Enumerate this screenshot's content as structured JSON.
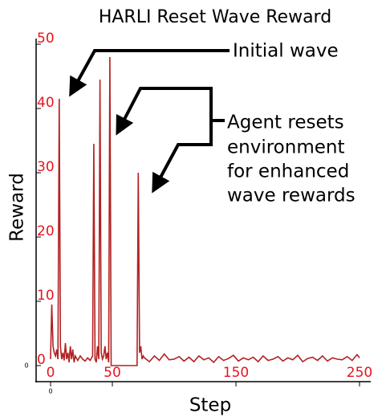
{
  "chart_data": {
    "type": "line",
    "title": "HARLI Reset Wave Reward",
    "xlabel": "Step",
    "ylabel": "Reward",
    "xlim": [
      0,
      250
    ],
    "ylim": [
      0,
      50
    ],
    "xticks": [
      0,
      50,
      150,
      250
    ],
    "yticks": [
      0,
      10,
      20,
      30,
      40,
      50
    ],
    "minor_labels": [
      "0",
      "0"
    ],
    "annotations": [
      "Initial wave",
      "Agent resets",
      "environment",
      "for enhanced",
      "wave rewards"
    ],
    "series": [
      {
        "name": "Reward",
        "color": "#b22222",
        "x": [
          0,
          1,
          2,
          3,
          4,
          5,
          6,
          7,
          8,
          9,
          10,
          11,
          12,
          13,
          14,
          15,
          16,
          17,
          18,
          19,
          20,
          22,
          24,
          26,
          28,
          30,
          32,
          34,
          35,
          36,
          37,
          38,
          39,
          40,
          41,
          42,
          43,
          44,
          45,
          46,
          47,
          48,
          49,
          50,
          70,
          71,
          72,
          73,
          74,
          75,
          76,
          80,
          84,
          88,
          92,
          96,
          100,
          104,
          108,
          112,
          116,
          120,
          124,
          128,
          132,
          136,
          140,
          144,
          148,
          152,
          156,
          160,
          164,
          168,
          172,
          176,
          180,
          184,
          188,
          192,
          196,
          200,
          204,
          208,
          212,
          216,
          220,
          224,
          228,
          232,
          236,
          240,
          244,
          248,
          250
        ],
        "values": [
          1,
          9.5,
          3,
          2,
          1.5,
          2.5,
          1,
          41.5,
          3,
          1,
          2,
          0.8,
          3.5,
          1,
          2,
          0.5,
          3,
          1,
          2.5,
          0.5,
          1.5,
          0.8,
          1.5,
          1,
          0.7,
          1.2,
          0.8,
          1.5,
          34.5,
          1,
          0.5,
          3,
          1,
          44.5,
          2,
          1,
          1.5,
          3,
          1,
          2,
          0.5,
          48,
          0,
          0,
          0,
          30,
          2,
          3,
          1,
          1.5,
          1.2,
          0.6,
          1.5,
          0.8,
          1.8,
          0.9,
          1,
          1.4,
          0.7,
          1.3,
          0.6,
          1.5,
          0.9,
          1.2,
          0.5,
          1.4,
          0.8,
          1.1,
          1.6,
          0.7,
          1.2,
          0.9,
          1.3,
          0.6,
          1.5,
          0.8,
          1,
          1.4,
          0.7,
          1.2,
          0.9,
          1.6,
          0.6,
          1.1,
          1.3,
          0.8,
          1.5,
          0.7,
          1.2,
          1,
          0.9,
          1.4,
          0.8,
          1.7,
          1.2
        ]
      }
    ]
  }
}
